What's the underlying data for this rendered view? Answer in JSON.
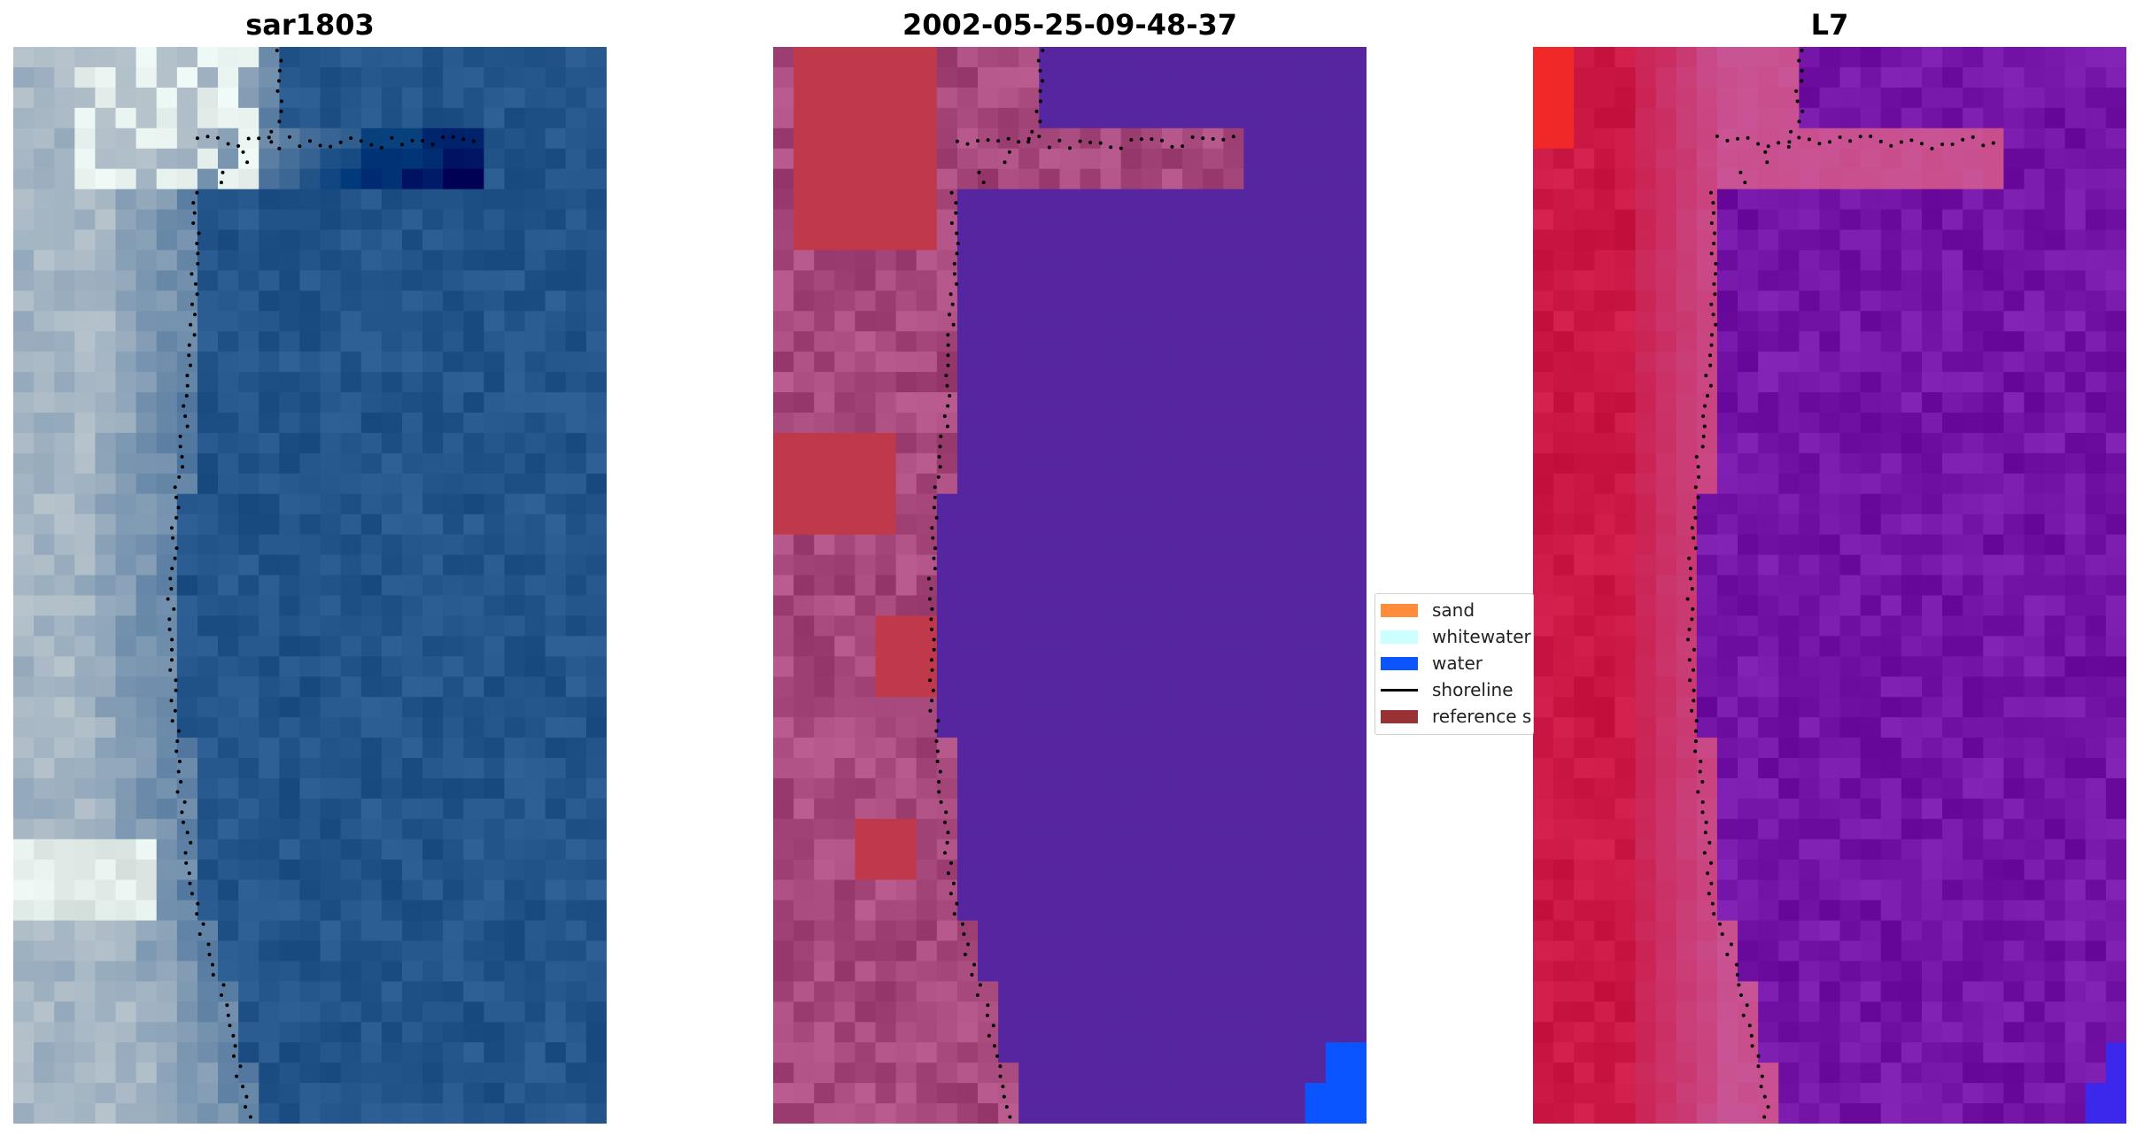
{
  "panels": [
    {
      "title": "sar1803",
      "palette": "rgb"
    },
    {
      "title": "2002-05-25-09-48-37",
      "palette": "classified"
    },
    {
      "title": "L7",
      "palette": "index"
    }
  ],
  "legend": {
    "items": [
      {
        "label": "sand",
        "color": "#ff8c3a",
        "type": "patch"
      },
      {
        "label": "whitewater",
        "color": "#ccffff",
        "type": "patch"
      },
      {
        "label": "water",
        "color": "#0a55ff",
        "type": "patch"
      },
      {
        "label": "shoreline",
        "color": "#000000",
        "type": "line"
      },
      {
        "label": "reference s",
        "color": "#993333",
        "type": "patch"
      }
    ]
  },
  "colors": {
    "water_rgb": "#24558a",
    "land_rgb": "#b8c4cc",
    "classified_water": "#5625a0",
    "classified_land": "#a8497e",
    "classified_reference": "#c0394a",
    "index_land": "#cc1845",
    "index_water": "#7415a8"
  }
}
